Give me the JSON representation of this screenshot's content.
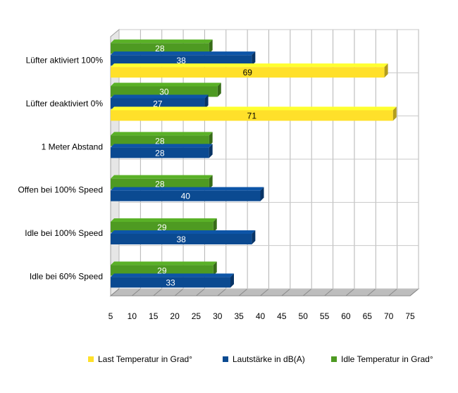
{
  "chart_data": {
    "type": "bar",
    "orientation": "horizontal",
    "title": "",
    "xlabel": "",
    "ylabel": "",
    "xlim": [
      5,
      75
    ],
    "x_ticks": [
      5,
      10,
      15,
      20,
      25,
      30,
      35,
      40,
      45,
      50,
      55,
      60,
      65,
      70,
      75
    ],
    "grid": true,
    "legend_position": "bottom",
    "categories": [
      "Lüfter aktiviert 100%",
      "Lüfter deaktiviert 0%",
      "1 Meter Abstand",
      "Offen bei 100% Speed",
      "Idle bei 100% Speed",
      "Idle bei 60% Speed"
    ],
    "series": [
      {
        "name": "Idle Temperatur in Grad°",
        "color": "#4e9a22",
        "values": [
          28,
          30,
          28,
          28,
          29,
          29
        ]
      },
      {
        "name": "Lautstärke in dB(A)",
        "color": "#0b4a91",
        "values": [
          38,
          27,
          28,
          40,
          38,
          33
        ]
      },
      {
        "name": "Last Temperatur in Grad°",
        "color": "#ffe02a",
        "values": [
          69,
          71,
          null,
          null,
          null,
          null
        ]
      }
    ]
  },
  "legend_order": [
    2,
    1,
    0
  ]
}
